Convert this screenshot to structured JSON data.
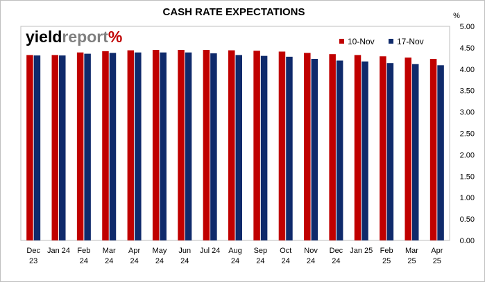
{
  "chart_data": {
    "type": "bar",
    "title": "CASH RATE EXPECTATIONS",
    "ylabel": "%",
    "ylim": [
      0,
      5
    ],
    "yticks": [
      "0.00",
      "0.50",
      "1.00",
      "1.50",
      "2.00",
      "2.50",
      "3.00",
      "3.50",
      "4.00",
      "4.50",
      "5.00"
    ],
    "categories": [
      [
        "Dec",
        "23"
      ],
      [
        "Jan 24"
      ],
      [
        "Feb",
        "24"
      ],
      [
        "Mar",
        "24"
      ],
      [
        "Apr",
        "24"
      ],
      [
        "May",
        "24"
      ],
      [
        "Jun",
        "24"
      ],
      [
        "Jul 24"
      ],
      [
        "Aug",
        "24"
      ],
      [
        "Sep",
        "24"
      ],
      [
        "Oct",
        "24"
      ],
      [
        "Nov",
        "24"
      ],
      [
        "Dec",
        "24"
      ],
      [
        "Jan 25"
      ],
      [
        "Feb",
        "25"
      ],
      [
        "Mar",
        "25"
      ],
      [
        "Apr",
        "25"
      ]
    ],
    "series": [
      {
        "name": "10-Nov",
        "color": "#c00000",
        "values": [
          4.33,
          4.33,
          4.39,
          4.42,
          4.44,
          4.45,
          4.45,
          4.45,
          4.44,
          4.43,
          4.41,
          4.38,
          4.35,
          4.33,
          4.3,
          4.27,
          4.24
        ]
      },
      {
        "name": "17-Nov",
        "color": "#0f2a6b",
        "values": [
          4.32,
          4.32,
          4.36,
          4.38,
          4.39,
          4.39,
          4.39,
          4.37,
          4.33,
          4.31,
          4.29,
          4.24,
          4.2,
          4.18,
          4.14,
          4.12,
          4.09
        ]
      }
    ],
    "legend_position": "top-right",
    "grid": false
  },
  "logo": {
    "text_a": "yield",
    "text_b": "report",
    "text_c": "%",
    "color_a": "#000000",
    "color_b": "#808080",
    "color_pct_red": "#c00000",
    "color_pct_green": "#1e7b34"
  }
}
